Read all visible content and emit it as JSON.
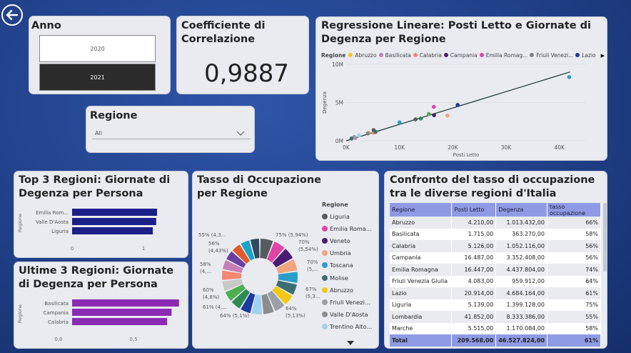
{
  "nav": {
    "back_icon": "back-arrow-icon"
  },
  "anno": {
    "title": "Anno",
    "options": [
      "2020",
      "2021"
    ],
    "selected": "2021"
  },
  "corr": {
    "title": "Coefficiente di Correlazione",
    "value": "0,9887"
  },
  "regione_filter": {
    "title": "Regione",
    "value": "All"
  },
  "scatter": {
    "title": "Regressione Lineare: Posti Letto e Giornate di Degenza per Regione",
    "legend_label": "Regione",
    "legend": [
      {
        "name": "Abruzzo",
        "color": "#f2c811"
      },
      {
        "name": "Basilicata",
        "color": "#c77eb5"
      },
      {
        "name": "Calabria",
        "color": "#f28773"
      },
      {
        "name": "Campania",
        "color": "#4b1b73"
      },
      {
        "name": "Emilia Romag...",
        "color": "#e044a7"
      },
      {
        "name": "Friuli Venezi...",
        "color": "#7a8085"
      },
      {
        "name": "Lazio",
        "color": "#1d3b9e"
      }
    ],
    "xlabel": "Posti Letto",
    "ylabel": "Degenza",
    "xticks": [
      "0K",
      "10K",
      "20K",
      "30K",
      "40K"
    ],
    "yticks": [
      "0M",
      "5M",
      "10M"
    ]
  },
  "top3": {
    "title": "Top 3 Regioni: Giornate di Degenza per Persona",
    "ylabel": "Regione",
    "xticks": [
      "0",
      "1"
    ],
    "color": "#1b1f87"
  },
  "bottom3": {
    "title": "Ultime 3 Regioni: Giornate di Degenza per Persona",
    "ylabel": "Regione",
    "xticks": [
      "0,0",
      "0,5"
    ],
    "color": "#8b2bb3"
  },
  "donut": {
    "title": "Tasso di Occupazione per Regione",
    "legend_title": "Regione",
    "legend": [
      {
        "name": "Liguria",
        "color": "#565b5f"
      },
      {
        "name": "Emilia Roma...",
        "color": "#e044a7"
      },
      {
        "name": "Veneto",
        "color": "#4b1b73"
      },
      {
        "name": "Umbria",
        "color": "#f0a57e"
      },
      {
        "name": "Toscana",
        "color": "#2a9ec9"
      },
      {
        "name": "Molise",
        "color": "#3d6d72"
      },
      {
        "name": "Abruzzo",
        "color": "#f2c811"
      },
      {
        "name": "Friuli Venezi...",
        "color": "#9aa0a6"
      },
      {
        "name": "Valle D'Aosta",
        "color": "#8c8c8c"
      },
      {
        "name": "Trentino Alto...",
        "color": "#9fd2f0"
      }
    ],
    "labels": [
      "55% (4,3...",
      "56%\n(4,43%)",
      "58%\n(4,...",
      "60%\n(4,8%)",
      "61% (4,...",
      "64% (5,1%)",
      "75% (5,94%)",
      "70%\n(5,54%)",
      "70%\n(5,...",
      "67%\n(5,3...",
      "64%\n(5,13%)"
    ]
  },
  "table": {
    "title": "Confronto del tasso di occupazione tra le diverse regioni d'Italia",
    "columns": [
      "Regione",
      "Posti Letto",
      "Degenza",
      "tasso occupazione"
    ],
    "rows": [
      [
        "Abruzzo",
        "4.210,00",
        "1.013.432,00",
        "66%"
      ],
      [
        "Basilicata",
        "1.715,00",
        "363.270,00",
        "58%"
      ],
      [
        "Calabria",
        "5.126,00",
        "1.052.116,00",
        "56%"
      ],
      [
        "Campania",
        "16.487,00",
        "3.352.408,00",
        "56%"
      ],
      [
        "Emilia Romagna",
        "16.447,00",
        "4.437.804,00",
        "74%"
      ],
      [
        "Friuli Venezia Giulia",
        "4.083,00",
        "959.912,00",
        "64%"
      ],
      [
        "Lazio",
        "20.914,00",
        "4.684.164,00",
        "61%"
      ],
      [
        "Liguria",
        "5.139,00",
        "1.399.128,00",
        "75%"
      ],
      [
        "Lombardia",
        "41.852,00",
        "8.333.386,00",
        "55%"
      ],
      [
        "Marche",
        "5.515,00",
        "1.170.084,00",
        "58%"
      ]
    ],
    "total": [
      "Total",
      "209.568,00",
      "46.527.824,00",
      "61%"
    ]
  },
  "chart_data": [
    {
      "type": "scatter",
      "title": "Regressione Lineare: Posti Letto e Giornate di Degenza per Regione",
      "xlabel": "Posti Letto",
      "ylabel": "Degenza",
      "xlim": [
        0,
        45000
      ],
      "ylim": [
        0,
        10000000
      ],
      "points": [
        {
          "x": 1715,
          "y": 363270,
          "c": "#c77eb5"
        },
        {
          "x": 4210,
          "y": 1013432,
          "c": "#f2c811"
        },
        {
          "x": 5126,
          "y": 1052116,
          "c": "#f28773"
        },
        {
          "x": 16487,
          "y": 3352408,
          "c": "#4b1b73"
        },
        {
          "x": 16447,
          "y": 4437804,
          "c": "#e044a7"
        },
        {
          "x": 4083,
          "y": 959912,
          "c": "#7a8085"
        },
        {
          "x": 20914,
          "y": 4684164,
          "c": "#1d3b9e"
        },
        {
          "x": 5139,
          "y": 1399128,
          "c": "#565b5f"
        },
        {
          "x": 41852,
          "y": 8333386,
          "c": "#2a9ec9"
        },
        {
          "x": 5515,
          "y": 1170084,
          "c": "#3d6d72"
        },
        {
          "x": 1500,
          "y": 500000,
          "c": "#9aa0a6"
        },
        {
          "x": 1000,
          "y": 300000,
          "c": "#3d6d72"
        },
        {
          "x": 10000,
          "y": 2400000,
          "c": "#2a9ec9"
        },
        {
          "x": 14000,
          "y": 2900000,
          "c": "#2e8b57"
        },
        {
          "x": 15500,
          "y": 3500000,
          "c": "#4caf50"
        },
        {
          "x": 19000,
          "y": 3300000,
          "c": "#f0a57e"
        },
        {
          "x": 2400,
          "y": 700000,
          "c": "#9fd2f0"
        },
        {
          "x": 13000,
          "y": 2800000,
          "c": "#565b5f"
        }
      ],
      "fit": [
        [
          0,
          0
        ],
        [
          42000,
          9000000
        ]
      ]
    },
    {
      "type": "bar",
      "title": "Top 3 Regioni: Giornate di Degenza per Persona",
      "categories": [
        "Emilia Rom...",
        "Valle D'Aosta",
        "Liguria"
      ],
      "values": [
        1.0,
        0.99,
        0.95
      ],
      "xlim": [
        0,
        1.2
      ]
    },
    {
      "type": "bar",
      "title": "Ultime 3 Regioni: Giornate di Degenza per Persona",
      "categories": [
        "Basilicata",
        "Campania",
        "Calabria"
      ],
      "values": [
        0.72,
        0.67,
        0.64
      ],
      "xlim": [
        0,
        1.0
      ]
    },
    {
      "type": "pie",
      "title": "Tasso di Occupazione per Regione",
      "slices": [
        {
          "c": "#565b5f",
          "v": 5.94
        },
        {
          "c": "#e044a7",
          "v": 5.54
        },
        {
          "c": "#4b1b73",
          "v": 5.5
        },
        {
          "c": "#f0a57e",
          "v": 5.5
        },
        {
          "c": "#2a9ec9",
          "v": 5.3
        },
        {
          "c": "#3d6d72",
          "v": 5.2
        },
        {
          "c": "#f2c811",
          "v": 5.13
        },
        {
          "c": "#9aa0a6",
          "v": 5.1
        },
        {
          "c": "#8c8c8c",
          "v": 5.1
        },
        {
          "c": "#9fd2f0",
          "v": 5.0
        },
        {
          "c": "#1d3b9e",
          "v": 4.9
        },
        {
          "c": "#2e8b57",
          "v": 4.85
        },
        {
          "c": "#4caf50",
          "v": 4.8
        },
        {
          "c": "#c8c8c8",
          "v": 4.7
        },
        {
          "c": "#f28773",
          "v": 4.6
        },
        {
          "c": "#c77eb5",
          "v": 4.5
        },
        {
          "c": "#6b3fa0",
          "v": 4.43
        },
        {
          "c": "#e05a2b",
          "v": 4.4
        },
        {
          "c": "#1aa3c9",
          "v": 4.3
        },
        {
          "c": "#34495e",
          "v": 4.3
        }
      ]
    }
  ]
}
